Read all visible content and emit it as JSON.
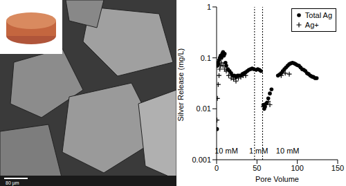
{
  "chart_data": {
    "type": "scatter",
    "x_label": "Pore Volume",
    "y_label": "Silver Release (mg/L)",
    "log": "y",
    "grid": false,
    "legend": "upper right",
    "xlim": [
      0,
      150
    ],
    "xticks": [
      0,
      50,
      100,
      150
    ],
    "ylim": [
      0.001,
      1
    ],
    "yticks": [
      0.001,
      0.01,
      0.1,
      1
    ],
    "vlines": [
      47,
      57
    ],
    "annotations": [
      {
        "text": "10 mM",
        "x": 12,
        "y": 0.0015
      },
      {
        "text": "1 mM",
        "x": 52,
        "y": 0.0015
      },
      {
        "text": "10 mM",
        "x": 88,
        "y": 0.0015
      }
    ],
    "series": [
      {
        "name": "Total Ag",
        "color": "#000000",
        "marker": "circle",
        "x": [
          0.5,
          1,
          1.5,
          2,
          3,
          4,
          5,
          6,
          7,
          8,
          9,
          10,
          11,
          12,
          14,
          16,
          18,
          20,
          22,
          24,
          26,
          28,
          30,
          32,
          34,
          36,
          38,
          40,
          42,
          44,
          46,
          49,
          51,
          53,
          55,
          58,
          59,
          60,
          62,
          64,
          66,
          68,
          76,
          78,
          80,
          82,
          84,
          86,
          88,
          90,
          92,
          94,
          96,
          98,
          100,
          102,
          104,
          106,
          108,
          110,
          112,
          114,
          116,
          118,
          120,
          122,
          124
        ],
        "values": [
          0.004,
          0.07,
          0.08,
          0.075,
          0.09,
          0.1,
          0.11,
          0.1,
          0.12,
          0.13,
          0.11,
          0.12,
          0.08,
          0.07,
          0.06,
          0.055,
          0.05,
          0.045,
          0.045,
          0.042,
          0.045,
          0.045,
          0.045,
          0.048,
          0.05,
          0.052,
          0.055,
          0.058,
          0.06,
          0.062,
          0.06,
          0.058,
          0.06,
          0.058,
          0.055,
          0.012,
          0.01,
          0.011,
          0.013,
          0.016,
          0.02,
          0.024,
          0.045,
          0.047,
          0.05,
          0.055,
          0.06,
          0.065,
          0.07,
          0.075,
          0.078,
          0.08,
          0.078,
          0.075,
          0.072,
          0.07,
          0.065,
          0.06,
          0.058,
          0.055,
          0.05,
          0.048,
          0.045,
          0.043,
          0.042,
          0.04,
          0.04
        ]
      },
      {
        "name": "Ag+",
        "color": "#000000",
        "marker": "plus",
        "x": [
          0.5,
          1,
          2,
          3,
          4,
          5,
          6,
          8,
          10,
          12,
          15,
          18,
          21,
          24,
          27,
          30,
          33,
          36,
          58,
          60,
          62,
          64,
          66,
          80,
          85,
          90
        ],
        "values": [
          0.006,
          0.016,
          0.03,
          0.045,
          0.06,
          0.07,
          0.08,
          0.07,
          0.06,
          0.055,
          0.045,
          0.04,
          0.038,
          0.035,
          0.04,
          0.042,
          0.045,
          0.045,
          0.011,
          0.012,
          0.013,
          0.014,
          0.012,
          0.045,
          0.05,
          0.048
        ]
      }
    ]
  },
  "micrograph": {
    "scale_bar": "80 µm"
  }
}
